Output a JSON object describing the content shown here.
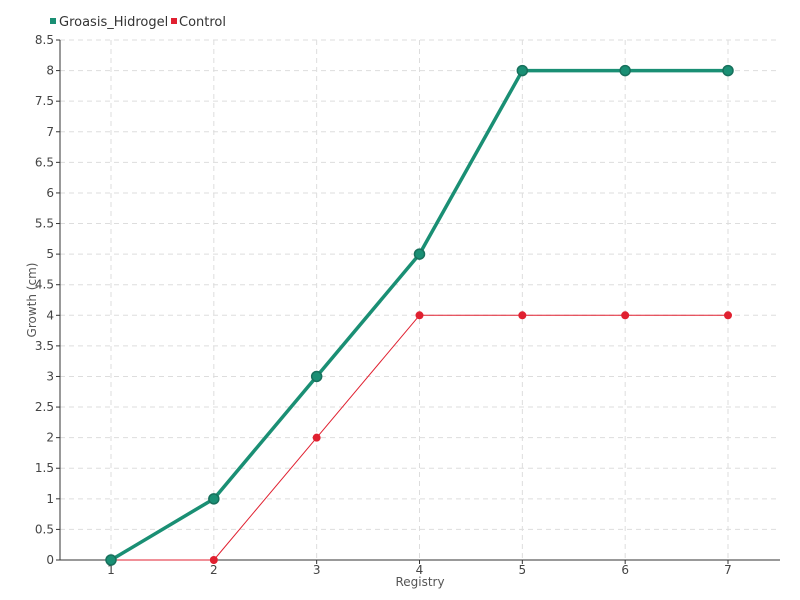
{
  "chart_data": {
    "type": "line",
    "title": "",
    "xlabel": "Registry",
    "ylabel": "Growth (cm)",
    "x": [
      1,
      2,
      3,
      4,
      5,
      6,
      7
    ],
    "ylim": [
      0,
      8.5
    ],
    "ytick_step": 0.5,
    "grid": true,
    "legend_position": "top-left",
    "series": [
      {
        "name": "Groasis_Hidrogel",
        "color": "#1a8f74",
        "values": [
          0,
          1,
          3,
          5,
          8,
          8,
          8
        ]
      },
      {
        "name": "Control",
        "color": "#e02030",
        "values": [
          0,
          0,
          2,
          4,
          4,
          4,
          4
        ]
      }
    ]
  }
}
